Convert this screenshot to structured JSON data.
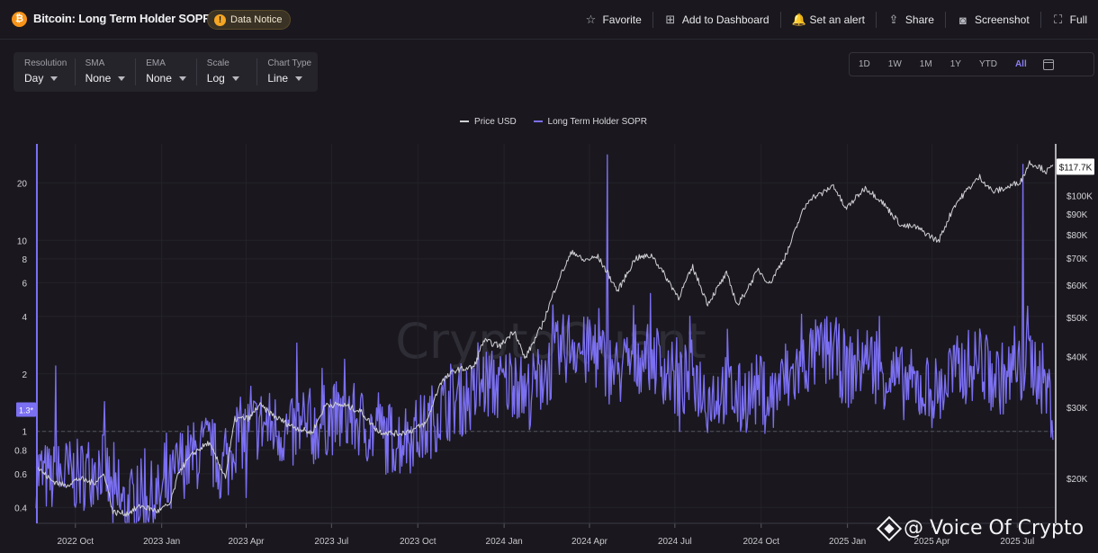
{
  "header": {
    "coin_icon": "bitcoin-icon",
    "coin_symbol": "₿",
    "title": "Bitcoin: Long Term Holder SOPR",
    "notice": "Data Notice",
    "actions": [
      {
        "label": "Favorite",
        "icon": "star-icon",
        "glyph": "☆"
      },
      {
        "label": "Add to Dashboard",
        "icon": "dashboard-add-icon",
        "glyph": "⊞"
      },
      {
        "label": "Set an alert",
        "icon": "bell-icon",
        "glyph": "🔔"
      },
      {
        "label": "Share",
        "icon": "share-icon",
        "glyph": "⇪"
      },
      {
        "label": "Screenshot",
        "icon": "camera-icon",
        "glyph": "◙"
      },
      {
        "label": "Full",
        "icon": "fullscreen-icon",
        "glyph": "⛶"
      }
    ]
  },
  "controls": [
    {
      "label": "Resolution",
      "value": "Day"
    },
    {
      "label": "SMA",
      "value": "None"
    },
    {
      "label": "EMA",
      "value": "None"
    },
    {
      "label": "Scale",
      "value": "Log"
    },
    {
      "label": "Chart Type",
      "value": "Line"
    }
  ],
  "ranges": [
    "1D",
    "1W",
    "1M",
    "1Y",
    "YTD",
    "All"
  ],
  "active_range": "All",
  "watermark": "CryptoQuant",
  "brand": "@ Voice Of Crypto",
  "colors": {
    "price": "#d0d0d4",
    "sopr": "#7b6ff2",
    "background": "#1a181e"
  },
  "chart_data": {
    "type": "line",
    "title": "",
    "x_axis": {
      "ticks": [
        "2022 Oct",
        "2023 Jan",
        "2023 Apr",
        "2023 Jul",
        "2023 Oct",
        "2024 Jan",
        "2024 Apr",
        "2024 Jul",
        "2024 Oct",
        "2025 Jan",
        "2025 Apr",
        "2025 Jul"
      ],
      "range": [
        "2022-08-20",
        "2025-08-10"
      ]
    },
    "y_left": {
      "scale": "log",
      "ticks": [
        0.4,
        0.6,
        0.8,
        1,
        2,
        4,
        6,
        8,
        10,
        20
      ],
      "range": [
        0.33,
        32
      ],
      "current_label": "1.3*",
      "current_value": 1.3,
      "reference_line": 1
    },
    "y_right": {
      "scale": "log",
      "ticks": [
        "$20K",
        "$30K",
        "$40K",
        "$50K",
        "$60K",
        "$70K",
        "$80K",
        "$90K",
        "$100K"
      ],
      "tick_values": [
        20000,
        30000,
        40000,
        50000,
        60000,
        70000,
        80000,
        90000,
        100000
      ],
      "range": [
        15500,
        134000
      ],
      "current_label": "$117.7K",
      "current_value": 117700
    },
    "legend": [
      "Price USD",
      "Long Term Holder SOPR"
    ],
    "legend_placement": "top-center",
    "series": [
      {
        "name": "Price USD",
        "axis": "right",
        "points": [
          [
            "2022-08-20",
            21500
          ],
          [
            "2022-09-05",
            19800
          ],
          [
            "2022-09-20",
            19200
          ],
          [
            "2022-10-05",
            20000
          ],
          [
            "2022-10-20",
            19500
          ],
          [
            "2022-11-01",
            20500
          ],
          [
            "2022-11-10",
            16500
          ],
          [
            "2022-11-25",
            16400
          ],
          [
            "2022-12-10",
            17100
          ],
          [
            "2022-12-28",
            16600
          ],
          [
            "2023-01-10",
            17300
          ],
          [
            "2023-01-20",
            21000
          ],
          [
            "2023-02-05",
            23200
          ],
          [
            "2023-02-20",
            24500
          ],
          [
            "2023-03-10",
            20200
          ],
          [
            "2023-03-20",
            28000
          ],
          [
            "2023-04-05",
            28200
          ],
          [
            "2023-04-15",
            30400
          ],
          [
            "2023-05-01",
            28500
          ],
          [
            "2023-05-20",
            26900
          ],
          [
            "2023-06-10",
            25900
          ],
          [
            "2023-06-25",
            30500
          ],
          [
            "2023-07-15",
            30300
          ],
          [
            "2023-08-01",
            29300
          ],
          [
            "2023-08-20",
            26100
          ],
          [
            "2023-09-10",
            25800
          ],
          [
            "2023-09-25",
            26300
          ],
          [
            "2023-10-10",
            27400
          ],
          [
            "2023-10-25",
            34500
          ],
          [
            "2023-11-10",
            37000
          ],
          [
            "2023-11-30",
            37700
          ],
          [
            "2023-12-10",
            43800
          ],
          [
            "2023-12-28",
            42500
          ],
          [
            "2024-01-12",
            46500
          ],
          [
            "2024-01-23",
            39500
          ],
          [
            "2024-02-10",
            47500
          ],
          [
            "2024-02-28",
            62000
          ],
          [
            "2024-03-14",
            73000
          ],
          [
            "2024-03-25",
            69000
          ],
          [
            "2024-04-10",
            70500
          ],
          [
            "2024-04-20",
            64500
          ],
          [
            "2024-05-01",
            58000
          ],
          [
            "2024-05-20",
            70000
          ],
          [
            "2024-06-07",
            71000
          ],
          [
            "2024-06-25",
            61000
          ],
          [
            "2024-07-05",
            56000
          ],
          [
            "2024-07-20",
            66500
          ],
          [
            "2024-08-05",
            54000
          ],
          [
            "2024-08-25",
            64000
          ],
          [
            "2024-09-06",
            53500
          ],
          [
            "2024-09-28",
            65500
          ],
          [
            "2024-10-10",
            60500
          ],
          [
            "2024-10-29",
            72500
          ],
          [
            "2024-11-12",
            89000
          ],
          [
            "2024-11-22",
            98500
          ],
          [
            "2024-12-05",
            101000
          ],
          [
            "2024-12-17",
            106000
          ],
          [
            "2024-12-30",
            92500
          ],
          [
            "2025-01-20",
            104500
          ],
          [
            "2025-02-05",
            97500
          ],
          [
            "2025-02-28",
            84000
          ],
          [
            "2025-03-15",
            83500
          ],
          [
            "2025-04-08",
            77000
          ],
          [
            "2025-04-25",
            94500
          ],
          [
            "2025-05-10",
            104000
          ],
          [
            "2025-05-22",
            111000
          ],
          [
            "2025-06-05",
            102000
          ],
          [
            "2025-06-20",
            104500
          ],
          [
            "2025-07-05",
            108500
          ],
          [
            "2025-07-14",
            120500
          ],
          [
            "2025-07-25",
            117500
          ],
          [
            "2025-08-01",
            114500
          ],
          [
            "2025-08-08",
            117700
          ]
        ]
      },
      {
        "name": "Long Term Holder SOPR",
        "axis": "left",
        "points": [
          [
            "2022-08-20",
            0.62
          ],
          [
            "2022-09-05",
            0.55
          ],
          [
            "2022-09-20",
            0.6
          ],
          [
            "2022-10-05",
            0.58
          ],
          [
            "2022-10-20",
            0.64
          ],
          [
            "2022-11-01",
            0.68
          ],
          [
            "2022-11-10",
            0.42
          ],
          [
            "2022-11-25",
            0.4
          ],
          [
            "2022-12-10",
            0.46
          ],
          [
            "2022-12-28",
            0.44
          ],
          [
            "2023-01-10",
            0.5
          ],
          [
            "2023-01-20",
            0.68
          ],
          [
            "2023-02-05",
            0.74
          ],
          [
            "2023-02-20",
            0.82
          ],
          [
            "2023-03-10",
            0.6
          ],
          [
            "2023-03-20",
            0.95
          ],
          [
            "2023-04-05",
            1.0
          ],
          [
            "2023-04-15",
            1.1
          ],
          [
            "2023-05-01",
            1.05
          ],
          [
            "2023-05-20",
            0.95
          ],
          [
            "2023-06-10",
            1.0
          ],
          [
            "2023-06-25",
            1.15
          ],
          [
            "2023-07-15",
            1.2
          ],
          [
            "2023-08-01",
            1.1
          ],
          [
            "2023-08-20",
            0.95
          ],
          [
            "2023-09-10",
            0.9
          ],
          [
            "2023-09-25",
            0.95
          ],
          [
            "2023-10-10",
            1.05
          ],
          [
            "2023-10-25",
            1.3
          ],
          [
            "2023-11-10",
            1.45
          ],
          [
            "2023-11-30",
            1.5
          ],
          [
            "2023-12-10",
            1.8
          ],
          [
            "2023-12-28",
            1.7
          ],
          [
            "2024-01-12",
            1.9
          ],
          [
            "2024-01-23",
            1.5
          ],
          [
            "2024-02-10",
            1.9
          ],
          [
            "2024-02-28",
            2.5
          ],
          [
            "2024-03-14",
            3.0
          ],
          [
            "2024-03-25",
            2.6
          ],
          [
            "2024-04-10",
            2.5
          ],
          [
            "2024-04-20",
            2.2
          ],
          [
            "2024-05-01",
            2.0
          ],
          [
            "2024-05-20",
            2.4
          ],
          [
            "2024-06-07",
            2.5
          ],
          [
            "2024-06-25",
            2.0
          ],
          [
            "2024-07-05",
            1.7
          ],
          [
            "2024-07-20",
            2.0
          ],
          [
            "2024-08-05",
            1.5
          ],
          [
            "2024-08-25",
            1.7
          ],
          [
            "2024-09-06",
            1.45
          ],
          [
            "2024-09-28",
            1.65
          ],
          [
            "2024-10-10",
            1.45
          ],
          [
            "2024-10-29",
            1.8
          ],
          [
            "2024-11-12",
            2.2
          ],
          [
            "2024-11-22",
            2.4
          ],
          [
            "2024-12-05",
            2.6
          ],
          [
            "2024-12-17",
            2.7
          ],
          [
            "2024-12-30",
            2.0
          ],
          [
            "2025-01-20",
            2.4
          ],
          [
            "2025-02-05",
            2.1
          ],
          [
            "2025-02-28",
            1.8
          ],
          [
            "2025-03-15",
            1.7
          ],
          [
            "2025-04-08",
            1.6
          ],
          [
            "2025-04-25",
            2.0
          ],
          [
            "2025-05-10",
            2.2
          ],
          [
            "2025-05-22",
            2.3
          ],
          [
            "2025-06-05",
            1.9
          ],
          [
            "2025-06-20",
            1.9
          ],
          [
            "2025-07-05",
            2.0
          ],
          [
            "2025-07-14",
            2.4
          ],
          [
            "2025-07-25",
            2.0
          ],
          [
            "2025-08-01",
            1.7
          ],
          [
            "2025-08-08",
            1.3
          ]
        ],
        "spikes": [
          [
            "2022-09-10",
            2.2
          ],
          [
            "2023-05-25",
            2.9
          ],
          [
            "2024-04-20",
            28
          ],
          [
            "2025-07-07",
            25
          ]
        ],
        "dips": [
          [
            "2023-04-01",
            0.45
          ],
          [
            "2024-07-06",
            1.0
          ],
          [
            "2024-09-09",
            1.0
          ]
        ]
      }
    ]
  }
}
